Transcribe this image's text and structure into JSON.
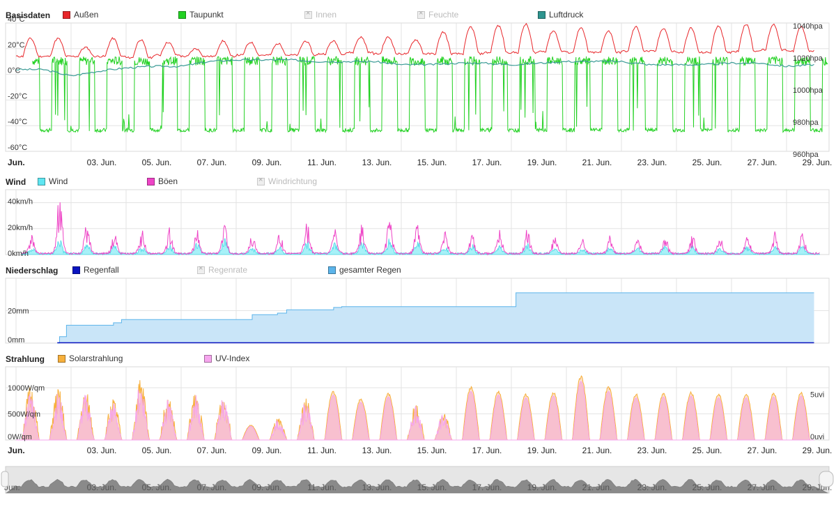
{
  "colors": {
    "aussen": "#e8262a",
    "taupunkt": "#22d122",
    "luftdruck": "#3a9b95",
    "wind": "#5fe6f2",
    "boeen": "#ee44c6",
    "regenfall": "#0a14c0",
    "gesamter_regen": "#5bb4ea",
    "solar": "#f7b03c",
    "uv": "#f6a6ee"
  },
  "legends": {
    "basis": {
      "title": "Basisdaten",
      "items": [
        {
          "label": "Außen",
          "color": "#e8262a",
          "visible": true
        },
        {
          "label": "Taupunkt",
          "color": "#22d122",
          "visible": true
        },
        {
          "label": "Innen",
          "color": "#cccccc",
          "visible": false
        },
        {
          "label": "Feuchte",
          "color": "#cccccc",
          "visible": false
        },
        {
          "label": "Luftdruck",
          "color": "#2e958f",
          "visible": true
        }
      ]
    },
    "wind": {
      "title": "Wind",
      "items": [
        {
          "label": "Wind",
          "color": "#5fe6f2",
          "visible": true
        },
        {
          "label": "Böen",
          "color": "#ee44c6",
          "visible": true
        },
        {
          "label": "Windrichtung",
          "color": "#cccccc",
          "visible": false
        }
      ]
    },
    "rain": {
      "title": "Niederschlag",
      "items": [
        {
          "label": "Regenfall",
          "color": "#0a14c0",
          "visible": true
        },
        {
          "label": "Regenrate",
          "color": "#cccccc",
          "visible": false
        },
        {
          "label": "gesamter Regen",
          "color": "#5bb4ea",
          "visible": true
        }
      ]
    },
    "sun": {
      "title": "Strahlung",
      "items": [
        {
          "label": "Solarstrahlung",
          "color": "#f7b03c",
          "visible": true
        },
        {
          "label": "UV-Index",
          "color": "#f6a6ee",
          "visible": true
        }
      ]
    }
  },
  "chart_data": [
    {
      "id": "basis",
      "type": "line",
      "title": "Basisdaten",
      "x_range": [
        "Jun 1",
        "Jun 30"
      ],
      "x_tick_labels": [
        "Jun.",
        "03. Jun.",
        "05. Jun.",
        "07. Jun.",
        "09. Jun.",
        "11. Jun.",
        "13. Jun.",
        "15. Jun.",
        "17. Jun.",
        "19. Jun.",
        "21. Jun.",
        "23. Jun.",
        "25. Jun.",
        "27. Jun.",
        "29. Jun."
      ],
      "y_left": {
        "unit": "°C",
        "ylim": [
          -60,
          40
        ],
        "ticks": [
          40,
          20,
          0,
          -20,
          -40,
          -60
        ],
        "tick_labels": [
          "40°C",
          "20°C",
          "0°C",
          "-20°C",
          "-40°C",
          "-60°C"
        ]
      },
      "y_right": {
        "unit": "hpa",
        "ylim": [
          960,
          1040
        ],
        "ticks": [
          1040,
          1020,
          1000,
          980,
          960
        ],
        "tick_labels": [
          "1040hpa",
          "1020hpa",
          "1000hpa",
          "980hpa",
          "960hpa"
        ]
      },
      "series": [
        {
          "name": "Außen",
          "axis": "left",
          "daily_max": [
            28,
            28,
            21,
            28,
            27,
            25,
            20,
            26,
            25,
            24,
            26,
            26,
            29,
            29,
            27,
            33,
            37,
            38,
            39,
            34,
            36,
            34,
            37,
            36,
            36,
            38,
            39,
            39,
            37,
            30
          ],
          "daily_min": [
            14,
            14,
            14,
            14,
            13,
            15,
            14,
            14,
            15,
            15,
            15,
            16,
            17,
            16,
            16,
            16,
            16,
            17,
            17,
            18,
            17,
            17,
            18,
            18,
            17,
            17,
            18,
            19,
            18,
            18
          ]
        },
        {
          "name": "Taupunkt",
          "axis": "left",
          "day_level": 10,
          "night_level": -43
        },
        {
          "name": "Luftdruck",
          "axis": "right",
          "values": [
            1011,
            1011,
            1007,
            1010,
            1012,
            1013,
            1013,
            1016,
            1017,
            1017,
            1017,
            1016,
            1016,
            1016,
            1014,
            1014,
            1015,
            1015,
            1014,
            1015,
            1016,
            1016,
            1016,
            1014,
            1014,
            1014,
            1015,
            1015,
            1013,
            1014
          ]
        }
      ]
    },
    {
      "id": "wind",
      "type": "area",
      "title": "Wind",
      "x_range": [
        "Jun 1",
        "Jun 30"
      ],
      "y_left": {
        "unit": "km/h",
        "ylim": [
          0,
          50
        ],
        "ticks": [
          40,
          20,
          0
        ],
        "tick_labels": [
          "40km/h",
          "20km/h",
          "0km/h"
        ]
      },
      "series": [
        {
          "name": "Wind",
          "daily_peak": [
            4,
            11,
            7,
            6,
            5,
            6,
            7,
            10,
            5,
            5,
            9,
            8,
            8,
            11,
            9,
            5,
            6,
            6,
            7,
            4,
            4,
            5,
            4,
            6,
            5,
            4,
            5,
            6,
            6,
            5
          ]
        },
        {
          "name": "Böen",
          "daily_peak": [
            12,
            42,
            22,
            14,
            15,
            17,
            16,
            19,
            13,
            14,
            21,
            17,
            20,
            25,
            20,
            14,
            13,
            15,
            16,
            11,
            10,
            12,
            11,
            13,
            12,
            11,
            12,
            14,
            14,
            12
          ]
        }
      ]
    },
    {
      "id": "rain",
      "type": "area",
      "title": "Niederschlag",
      "x_range": [
        "Jun 1",
        "Jun 30"
      ],
      "y_left": {
        "unit": "mm",
        "ylim": [
          0,
          40
        ],
        "ticks": [
          20,
          0
        ],
        "tick_labels": [
          "20mm",
          "0mm"
        ]
      },
      "series": [
        {
          "name": "gesamter Regen",
          "cumulative_steps": [
            [
              "Jun 2 12:00",
              0
            ],
            [
              "Jun 2 14:00",
              4
            ],
            [
              "Jun 2 20:00",
              11
            ],
            [
              "Jun 4 13:00",
              12.5
            ],
            [
              "Jun 4 20:00",
              14.5
            ],
            [
              "Jun 9 14:00",
              17.5
            ],
            [
              "Jun 10 12:00",
              18.5
            ],
            [
              "Jun 10 20:00",
              20.5
            ],
            [
              "Jun 12 13:00",
              22
            ],
            [
              "Jun 12 20:00",
              22.5
            ],
            [
              "Jun 19 4:00",
              31
            ],
            [
              "Jun 30",
              31
            ]
          ]
        },
        {
          "name": "Regenfall",
          "values": [
            0
          ]
        }
      ]
    },
    {
      "id": "sun",
      "type": "area",
      "title": "Strahlung",
      "x_range": [
        "Jun 1",
        "Jun 30"
      ],
      "x_tick_labels": [
        "Jun.",
        "03. Jun.",
        "05. Jun.",
        "07. Jun.",
        "09. Jun.",
        "11. Jun.",
        "13. Jun.",
        "15. Jun.",
        "17. Jun.",
        "19. Jun.",
        "21. Jun.",
        "23. Jun.",
        "25. Jun.",
        "27. Jun.",
        "29. Jun."
      ],
      "y_left": {
        "unit": "W/qm",
        "ylim": [
          0,
          1400
        ],
        "ticks": [
          1000,
          500,
          0
        ],
        "tick_labels": [
          "1000W/qm",
          "500W/qm",
          "0W/qm"
        ]
      },
      "y_right": {
        "unit": "uvi",
        "ylim": [
          0,
          8
        ],
        "ticks": [
          5,
          0
        ],
        "tick_labels": [
          "5uvi",
          "0uvi"
        ]
      },
      "series": [
        {
          "name": "Solarstrahlung",
          "daily_peak": [
            1000,
            950,
            900,
            780,
            1150,
            800,
            900,
            880,
            280,
            400,
            780,
            920,
            780,
            880,
            700,
            530,
            1000,
            920,
            870,
            900,
            1200,
            1000,
            870,
            880,
            900,
            870,
            870,
            880,
            900,
            920
          ]
        },
        {
          "name": "UV-Index",
          "daily_peak": [
            5.3,
            5.0,
            4.8,
            4.0,
            6.2,
            4.2,
            4.8,
            4.6,
            1.5,
            2.2,
            4.2,
            4.9,
            4.1,
            4.7,
            3.7,
            2.8,
            5.3,
            4.9,
            4.6,
            4.8,
            6.4,
            5.3,
            4.6,
            4.7,
            4.8,
            4.6,
            4.6,
            4.7,
            4.8,
            4.9
          ]
        }
      ]
    }
  ],
  "navigator": {
    "tick_labels": [
      "Jun.",
      "03. Jun.",
      "05. Jun.",
      "07. Jun.",
      "09. Jun.",
      "11. Jun.",
      "13. Jun.",
      "15. Jun.",
      "17. Jun.",
      "19. Jun.",
      "21. Jun.",
      "23. Jun.",
      "25. Jun.",
      "27. Jun.",
      "29. Jun."
    ]
  }
}
